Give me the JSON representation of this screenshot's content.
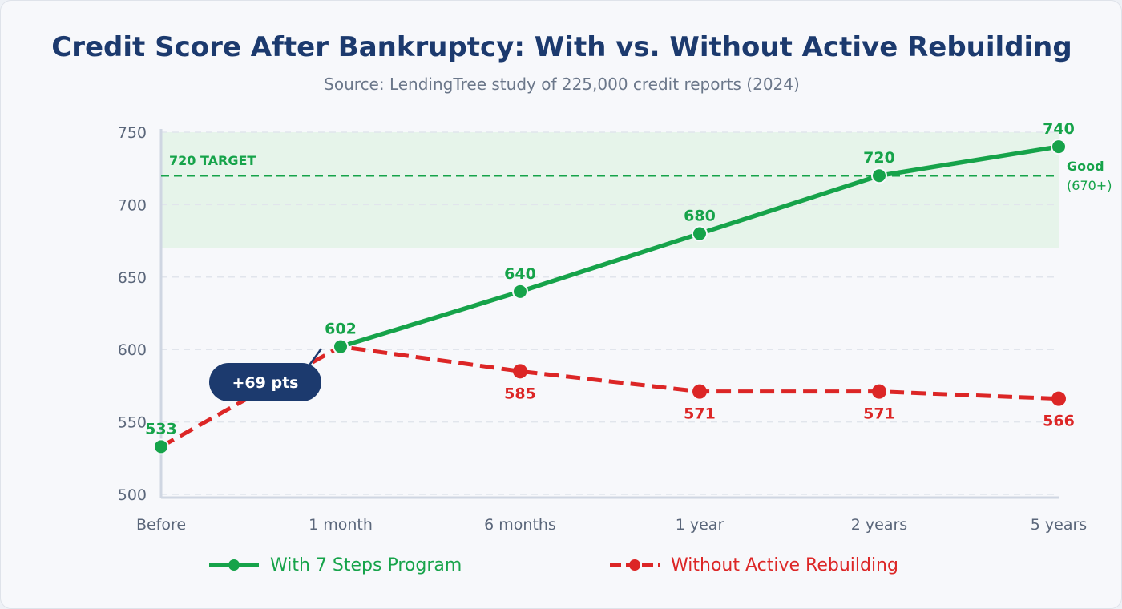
{
  "title": "Credit Score After Bankruptcy: With vs. Without Active Rebuilding",
  "subtitle": "Source: LendingTree study of 225,000 credit reports (2024)",
  "colors": {
    "green": "#16a34a",
    "red": "#dc2626",
    "navy": "#1c3a6e",
    "band": "#e6f4ea",
    "axis": "#cfd6e2",
    "grid": "#e1e5ec",
    "tick": "#5a667a"
  },
  "chart_data": {
    "type": "line",
    "categories": [
      "Before",
      "1 month",
      "6 months",
      "1 year",
      "2 years",
      "5 years"
    ],
    "series": [
      {
        "name": "With 7 Steps Program",
        "values": [
          533,
          602,
          640,
          680,
          720,
          740
        ],
        "style": "solid",
        "color": "#16a34a"
      },
      {
        "name": "Without Active Rebuilding",
        "values": [
          533,
          602,
          585,
          571,
          571,
          566
        ],
        "style": "dashed",
        "color": "#dc2626"
      }
    ],
    "data_labels": {
      "green": [
        "533",
        "602",
        "640",
        "680",
        "720",
        "740"
      ],
      "red": [
        "585",
        "571",
        "571",
        "566"
      ]
    },
    "ylim": [
      500,
      750
    ],
    "yticks": [
      "500",
      "550",
      "600",
      "650",
      "700",
      "750"
    ],
    "grid": true,
    "band": {
      "from": 670,
      "to": 750,
      "label": "Good",
      "sublabel": "(670+)"
    },
    "target_line": {
      "value": 720,
      "label": "720 TARGET"
    },
    "callout": {
      "text": "+69 pts",
      "from_index": 0,
      "to_index": 1
    },
    "legend_position": "bottom"
  }
}
